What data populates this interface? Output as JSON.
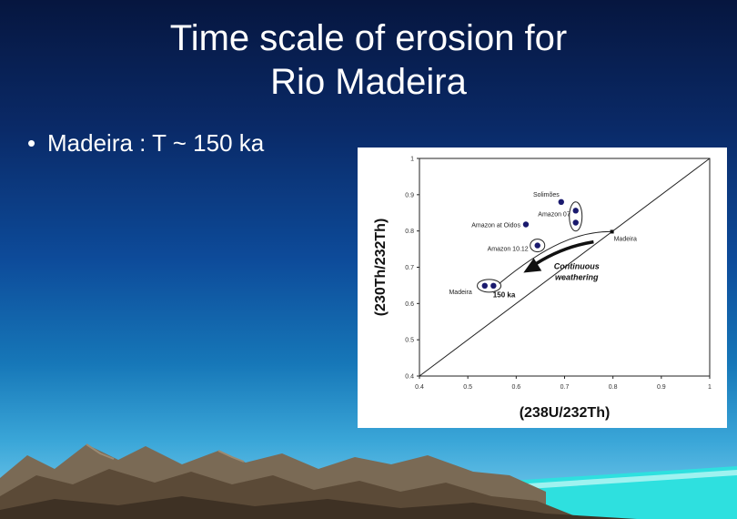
{
  "slide": {
    "title_line1": "Time scale of erosion for",
    "title_line2": "Rio Madeira",
    "bullet_marker": "•",
    "bullet_text": "Madeira : T ~ 150 ka"
  },
  "chart_data": {
    "type": "scatter",
    "xlabel": "(238U/232Th)",
    "ylabel": "(230Th/232Th)",
    "xlim": [
      0.4,
      1.0
    ],
    "ylim": [
      0.4,
      1.0
    ],
    "x_ticks": [
      "0.4",
      "0.5",
      "0.6",
      "0.7",
      "0.8",
      "0.9",
      "1"
    ],
    "y_ticks": [
      "0.4",
      "0.5",
      "0.6",
      "0.7",
      "0.8",
      "0.9",
      "1"
    ],
    "equiline": [
      [
        0.4,
        0.4
      ],
      [
        1.0,
        1.0
      ]
    ],
    "points": [
      {
        "label": "Solimões",
        "x": 0.693,
        "y": 0.88
      },
      {
        "label": "Amazon 07",
        "x": 0.723,
        "y": 0.856
      },
      {
        "label": "",
        "x": 0.723,
        "y": 0.823
      },
      {
        "label": "Amazon at Oidos",
        "x": 0.62,
        "y": 0.818
      },
      {
        "label": "Amazon 10.12",
        "x": 0.644,
        "y": 0.76
      },
      {
        "label": "Madeira",
        "x": 0.535,
        "y": 0.649
      },
      {
        "label": "",
        "x": 0.553,
        "y": 0.649
      },
      {
        "label": "Madeira",
        "x": 0.798,
        "y": 0.798,
        "marker": "square"
      }
    ],
    "annotations": [
      "Continuous",
      "weathering",
      "150 ka"
    ]
  }
}
